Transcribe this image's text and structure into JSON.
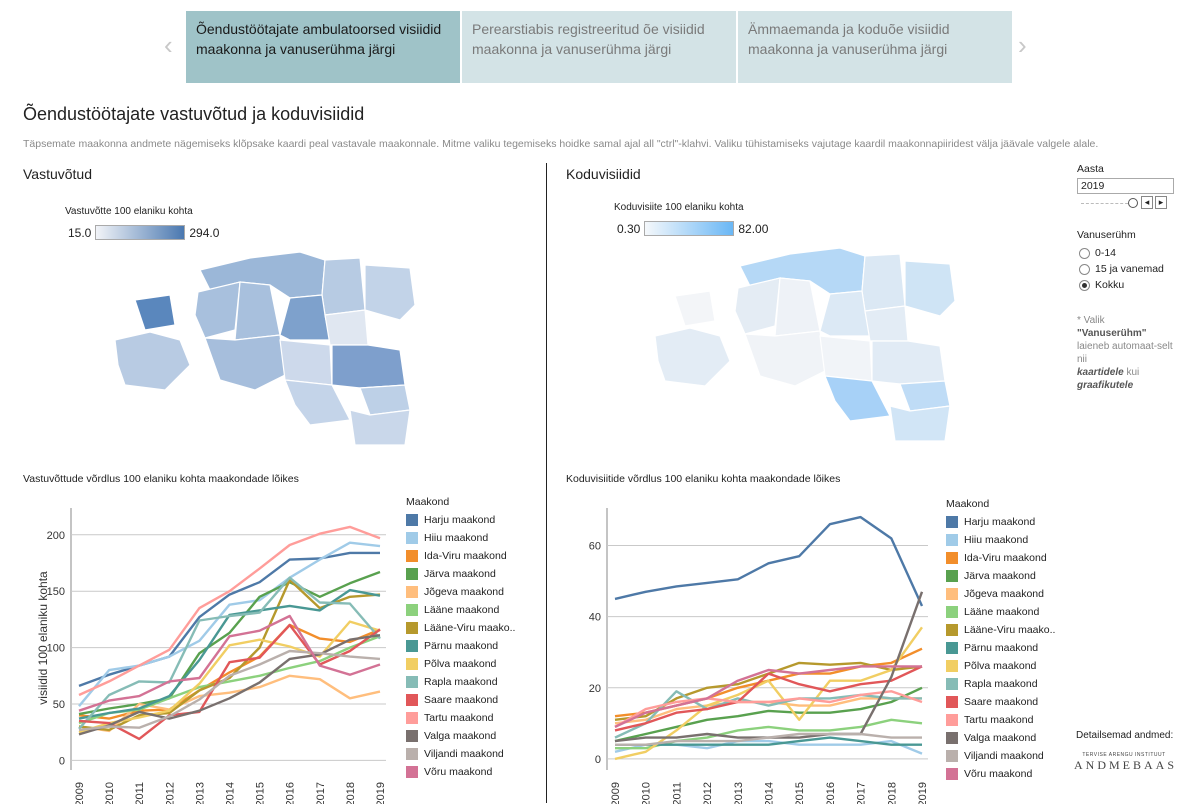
{
  "tabs": [
    {
      "label": "Õendustöötajate ambulatoorsed visiidid maakonna ja vanuserühma järgi",
      "active": true
    },
    {
      "label": "Perearstiabis registreeritud õe visiidid maakonna ja vanuserühma järgi",
      "active": false
    },
    {
      "label": "Ämmaemanda ja koduõe visiidid maakonna ja vanuserühma järgi",
      "active": false
    }
  ],
  "nav": {
    "prev": "‹",
    "next": "›"
  },
  "page": {
    "title": "Õendustöötajate vastuvõtud ja koduvisiidid",
    "subtitle": "Täpsemate maakonna andmete nägemiseks klõpsake kaardi peal vastavale maakonnale. Mitme valiku tegemiseks hoidke samal ajal all \"ctrl\"-klahvi.  Valiku tühistamiseks vajutage kaardil maakonnapiiridest välja jäävale valgele alale."
  },
  "left": {
    "section": "Vastuvõtud",
    "scale_title": "Vastuvõtte 100 elaniku kohta",
    "scale_min": "15.0",
    "scale_max": "294.0",
    "chart_title": "Vastuvõttude võrdlus 100 elaniku kohta maakondade lõikes",
    "color": "#4a78b0"
  },
  "right": {
    "section": "Koduvisiidid",
    "scale_title": "Koduvisiite 100 elaniku kohta",
    "scale_min": "0.30",
    "scale_max": "82.00",
    "chart_title": "Koduvisiitide võrdlus 100 elaniku kohta maakondade lõikes",
    "color": "#6ab7f5"
  },
  "controls": {
    "year_label": "Aasta",
    "year_value": "2019",
    "age_label": "Vanuserühm",
    "options": [
      "0-14",
      "15 ja vanemad",
      "Kokku"
    ],
    "selected": "Kokku",
    "note_prefix": "* Valik",
    "note_bold": "\"Vanuserühm\"",
    "note_mid": "laieneb automaat-selt nii",
    "note_bold2": "kaartidele",
    "note_mid2": "kui",
    "note_bold3": "graafikutele"
  },
  "footer": {
    "more": "Detailsemad andmed:",
    "logo": "ANDMEBAAS",
    "logo_sub": "TERVISE ARENGU INSTITUUT"
  },
  "legend_title": "Maakond",
  "chart_data": [
    {
      "type": "line",
      "title": "Vastuvõttude võrdlus 100 elaniku kohta maakondade lõikes",
      "xlabel": "",
      "ylabel": "visiidid 100 elaniku kohta",
      "x": [
        2009,
        2010,
        2011,
        2012,
        2013,
        2014,
        2015,
        2016,
        2017,
        2018,
        2019
      ],
      "ylim": [
        -5,
        222
      ],
      "yticks": [
        0,
        50,
        100,
        150,
        200
      ],
      "series": [
        {
          "name": "Harju maakond",
          "color": "#4e79a7",
          "values": [
            66,
            76,
            84,
            92,
            127,
            147,
            158,
            178,
            179,
            184,
            184
          ]
        },
        {
          "name": "Hiiu maakond",
          "color": "#a0cbe8",
          "values": [
            48,
            80,
            84,
            92,
            106,
            138,
            142,
            162,
            178,
            193,
            190
          ]
        },
        {
          "name": "Ida-Viru maakond",
          "color": "#f28e2b",
          "values": [
            40,
            37,
            44,
            45,
            62,
            78,
            92,
            120,
            108,
            105,
            116
          ]
        },
        {
          "name": "Järva maakond",
          "color": "#59a14f",
          "values": [
            41,
            46,
            50,
            55,
            95,
            113,
            145,
            158,
            145,
            157,
            167
          ]
        },
        {
          "name": "Jõgeva maakond",
          "color": "#ffbe7d",
          "values": [
            30,
            26,
            50,
            45,
            57,
            60,
            65,
            75,
            72,
            55,
            61
          ]
        },
        {
          "name": "Lääne maakond",
          "color": "#8cd17d",
          "values": [
            33,
            42,
            45,
            55,
            65,
            70,
            75,
            82,
            88,
            100,
            110
          ]
        },
        {
          "name": "Lääne-Viru maako..",
          "color": "#b6992d",
          "values": [
            30,
            27,
            40,
            42,
            62,
            73,
            100,
            160,
            135,
            145,
            147
          ]
        },
        {
          "name": "Pärnu maakond",
          "color": "#499894",
          "values": [
            37,
            42,
            46,
            57,
            89,
            129,
            133,
            137,
            133,
            151,
            146
          ]
        },
        {
          "name": "Põlva maakond",
          "color": "#f1ce63",
          "values": [
            25,
            33,
            38,
            44,
            68,
            102,
            107,
            101,
            92,
            123,
            115
          ]
        },
        {
          "name": "Rapla maakond",
          "color": "#86bcb6",
          "values": [
            28,
            58,
            70,
            69,
            124,
            128,
            131,
            162,
            140,
            139,
            108
          ]
        },
        {
          "name": "Saare maakond",
          "color": "#e15759",
          "values": [
            35,
            33,
            19,
            40,
            43,
            87,
            91,
            120,
            85,
            97,
            116
          ]
        },
        {
          "name": "Tartu maakond",
          "color": "#ff9d9a",
          "values": [
            58,
            70,
            84,
            98,
            135,
            150,
            170,
            191,
            201,
            207,
            197
          ]
        },
        {
          "name": "Valga maakond",
          "color": "#79706e",
          "values": [
            23,
            31,
            43,
            37,
            44,
            55,
            69,
            90,
            94,
            107,
            111
          ]
        },
        {
          "name": "Viljandi maakond",
          "color": "#bab0ac",
          "values": [
            27,
            30,
            29,
            39,
            54,
            75,
            85,
            97,
            95,
            92,
            90
          ]
        },
        {
          "name": "Võru maakond",
          "color": "#d37295",
          "values": [
            44,
            53,
            57,
            70,
            73,
            110,
            115,
            128,
            84,
            76,
            85
          ]
        }
      ]
    },
    {
      "type": "line",
      "title": "Koduvisiitide võrdlus 100 elaniku kohta maakondade lõikes",
      "xlabel": "",
      "ylabel": "",
      "x": [
        2009,
        2010,
        2011,
        2012,
        2013,
        2014,
        2015,
        2016,
        2017,
        2018,
        2019
      ],
      "ylim": [
        -2,
        70
      ],
      "yticks": [
        0,
        20,
        40,
        60
      ],
      "series": [
        {
          "name": "Harju maakond",
          "color": "#4e79a7",
          "values": [
            45,
            47,
            48.5,
            49.5,
            50.5,
            55,
            57,
            66,
            68,
            62,
            43
          ]
        },
        {
          "name": "Hiiu maakond",
          "color": "#a0cbe8",
          "values": [
            2,
            4,
            4,
            3,
            5,
            5,
            4,
            4,
            4,
            5,
            1.5
          ]
        },
        {
          "name": "Ida-Viru maakond",
          "color": "#f28e2b",
          "values": [
            12,
            13,
            15,
            17,
            20,
            22,
            24,
            24,
            26,
            27,
            31
          ]
        },
        {
          "name": "Järva maakond",
          "color": "#59a14f",
          "values": [
            5,
            7,
            9,
            11,
            12,
            13.5,
            13,
            13,
            14,
            16,
            20
          ]
        },
        {
          "name": "Jõgeva maakond",
          "color": "#ffbe7d",
          "values": [
            10,
            11,
            14,
            15,
            16,
            16,
            15,
            15,
            17,
            17,
            17
          ]
        },
        {
          "name": "Lääne maakond",
          "color": "#8cd17d",
          "values": [
            3,
            3,
            5,
            6,
            8,
            9,
            8,
            8,
            9,
            11,
            10
          ]
        },
        {
          "name": "Lääne-Viru maako..",
          "color": "#b6992d",
          "values": [
            11,
            12,
            17,
            20,
            21,
            24,
            27,
            26.5,
            27,
            25,
            26
          ]
        },
        {
          "name": "Pärnu maakond",
          "color": "#499894",
          "values": [
            4,
            4,
            4,
            4,
            4,
            4,
            5,
            6,
            5,
            4,
            4
          ]
        },
        {
          "name": "Põlva maakond",
          "color": "#f1ce63",
          "values": [
            0,
            2,
            8,
            15,
            18,
            22,
            11,
            22,
            22,
            25,
            37
          ]
        },
        {
          "name": "Rapla maakond",
          "color": "#86bcb6",
          "values": [
            6,
            10,
            19,
            14,
            17,
            15,
            17,
            17,
            18,
            17,
            17
          ]
        },
        {
          "name": "Saare maakond",
          "color": "#e15759",
          "values": [
            8,
            10,
            13,
            14,
            16,
            24,
            21,
            19,
            21,
            22,
            26
          ]
        },
        {
          "name": "Tartu maakond",
          "color": "#ff9d9a",
          "values": [
            9,
            14,
            16,
            17,
            16,
            16,
            17,
            16,
            18,
            19,
            16
          ]
        },
        {
          "name": "Valga maakond",
          "color": "#79706e",
          "values": [
            5,
            6,
            6,
            7,
            6,
            6,
            6,
            7,
            7,
            23,
            47
          ]
        },
        {
          "name": "Viljandi maakond",
          "color": "#bab0ac",
          "values": [
            4,
            4,
            5,
            5,
            5,
            6,
            7,
            7,
            7,
            6,
            6
          ]
        },
        {
          "name": "Võru maakond",
          "color": "#d37295",
          "values": [
            9,
            13,
            15,
            17,
            22,
            25,
            24,
            25,
            26,
            26,
            26
          ]
        }
      ]
    }
  ]
}
